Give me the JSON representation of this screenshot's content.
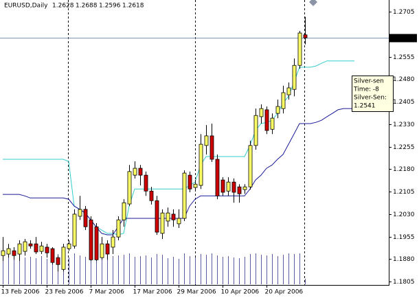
{
  "chart_data": {
    "type": "candlestick",
    "title": "EURUSD,Daily",
    "ohlc_header": [
      1.2628,
      1.2688,
      1.2596,
      1.2618
    ],
    "current_price": 1.2618,
    "up_color": "#ffff66",
    "down_color": "#cc0000",
    "ylim": [
      1.1794,
      1.2744
    ],
    "yticks": [
      1.2705,
      1.2555,
      {
        "value": 1.248,
        "label": "1.2480"
      },
      1.2405,
      {
        "value": 1.233,
        "label": "1.2330"
      },
      1.2255,
      {
        "value": 1.218,
        "label": "1.2180"
      },
      1.2105,
      {
        "value": 1.203,
        "label": "1.2030"
      },
      1.1955,
      {
        "value": 1.188,
        "label": "1.1880"
      },
      1.1805
    ],
    "categories": [
      "13 Feb 2006",
      null,
      null,
      null,
      null,
      null,
      null,
      null,
      "23 Feb 2006",
      null,
      null,
      null,
      null,
      null,
      null,
      null,
      "7 Mar 2006",
      null,
      null,
      null,
      null,
      null,
      null,
      null,
      "17 Mar 2006",
      null,
      null,
      null,
      null,
      null,
      null,
      null,
      "29 Mar 2006",
      null,
      null,
      null,
      null,
      null,
      null,
      null,
      "10 Apr 2006",
      null,
      null,
      null,
      null,
      null,
      null,
      null,
      "20 Apr 2006",
      null,
      null,
      null,
      null,
      null,
      null,
      null,
      null,
      null,
      null,
      null,
      null,
      null,
      null,
      null,
      null,
      null,
      null,
      null,
      null,
      null,
      null
    ],
    "open": [
      1.1892,
      1.1897,
      1.1908,
      1.1897,
      1.1906,
      1.1931,
      1.1931,
      1.1906,
      1.192,
      1.1915,
      1.1885,
      1.1846,
      1.1915,
      1.1924,
      1.2023,
      1.2046,
      1.2011,
      1.1988,
      1.1885,
      1.1931,
      1.192,
      1.1954,
      1.2011,
      1.2064,
      1.216,
      1.2183,
      1.216,
      1.2107,
      1.2075,
      1.1966,
      1.2007,
      1.203,
      1.1998,
      1.2016,
      1.216,
      1.2119,
      1.2126,
      1.2259,
      1.2291,
      1.2213,
      1.2144,
      1.2107,
      1.2137,
      1.2121,
      1.2112,
      1.2121,
      1.2259,
      1.2355,
      1.2378,
      1.2313,
      1.2366,
      1.2382,
      1.2428,
      1.2446,
      1.2526,
      1.2628,
      null,
      null,
      null,
      null,
      null,
      null,
      null,
      null,
      null,
      null,
      null,
      null,
      null,
      null,
      null
    ],
    "high": [
      1.1954,
      1.1931,
      1.192,
      1.1943,
      1.1947,
      1.1943,
      1.1954,
      1.1938,
      1.1931,
      1.192,
      1.1892,
      1.1931,
      1.1943,
      1.2046,
      1.2091,
      1.2057,
      1.2023,
      1.2,
      1.1954,
      1.1943,
      1.1977,
      1.2023,
      1.208,
      1.2194,
      1.2206,
      1.2194,
      1.2172,
      1.2121,
      1.2091,
      1.2046,
      1.2052,
      1.2046,
      1.2046,
      1.2176,
      1.2172,
      1.2144,
      1.2297,
      1.2327,
      1.2332,
      1.2229,
      1.2153,
      1.2153,
      1.2149,
      1.213,
      1.213,
      1.2275,
      1.2382,
      1.2396,
      1.2389,
      1.2366,
      1.2412,
      1.2458,
      1.2469,
      1.2549,
      1.2641,
      1.2688,
      null,
      null,
      null,
      null,
      null,
      null,
      null,
      null,
      null,
      null,
      null,
      null,
      null,
      null,
      null
    ],
    "low": [
      1.1874,
      1.1885,
      1.1878,
      1.1874,
      1.1892,
      1.1915,
      1.1897,
      1.1897,
      1.1885,
      1.1862,
      1.1839,
      1.1839,
      1.1908,
      1.1915,
      1.2011,
      1.1977,
      1.1874,
      1.1874,
      1.1878,
      1.1878,
      1.1897,
      1.1943,
      1.1988,
      1.2057,
      1.2149,
      1.2126,
      1.2091,
      1.2062,
      1.1961,
      1.1947,
      1.1988,
      1.1988,
      1.1984,
      1.2007,
      1.2103,
      1.2107,
      1.2114,
      1.2229,
      1.2204,
      1.208,
      1.2091,
      1.2091,
      1.2068,
      1.2068,
      1.2098,
      1.2112,
      1.2245,
      1.2332,
      1.2297,
      1.2297,
      1.235,
      1.2366,
      1.2412,
      1.2423,
      1.2515,
      1.2596,
      null,
      null,
      null,
      null,
      null,
      null,
      null,
      null,
      null,
      null,
      null,
      null,
      null,
      null,
      null
    ],
    "close": [
      1.1908,
      1.1915,
      1.1892,
      1.1931,
      1.1938,
      1.1924,
      1.1904,
      1.1924,
      1.1901,
      1.1869,
      1.1862,
      1.192,
      1.1931,
      1.203,
      1.2046,
      1.1988,
      1.1878,
      1.1878,
      1.1931,
      1.1897,
      1.1954,
      1.2011,
      1.2068,
      1.2172,
      1.2183,
      1.216,
      1.2107,
      1.2075,
      1.197,
      1.2034,
      1.2034,
      1.2011,
      1.2016,
      1.2167,
      1.2114,
      1.213,
      1.2263,
      1.2291,
      1.2213,
      1.2091,
      1.2103,
      1.2137,
      1.2103,
      1.2098,
      1.2121,
      1.2259,
      1.2359,
      1.2382,
      1.2309,
      1.235,
      1.2389,
      1.2435,
      1.2451,
      1.2526,
      1.2634,
      1.2618,
      null,
      null,
      null,
      null,
      null,
      null,
      null,
      null,
      null,
      null,
      null,
      null,
      null,
      null,
      null
    ],
    "volume": {
      "color": "#5a5aa0",
      "values": [
        38,
        40,
        36,
        42,
        39,
        40,
        38,
        41,
        37,
        42,
        44,
        43,
        39,
        45,
        42,
        40,
        43,
        44,
        38,
        40,
        41,
        42,
        43,
        45,
        40,
        41,
        42,
        39,
        44,
        43,
        38,
        40,
        37,
        45,
        41,
        39,
        44,
        43,
        45,
        42,
        40,
        41,
        39,
        38,
        40,
        44,
        45,
        43,
        42,
        44,
        41,
        43,
        45,
        44,
        45,
        8,
        null,
        null,
        null,
        null,
        null,
        null,
        null,
        null,
        null,
        null,
        null,
        null,
        null,
        null,
        null
      ]
    },
    "lines": [
      {
        "color": "#33cccc",
        "values": [
          1.2213,
          1.2213,
          1.2213,
          1.2213,
          1.2213,
          1.2213,
          1.2213,
          1.2213,
          1.2213,
          1.2213,
          1.2213,
          1.2213,
          1.2206,
          1.2057,
          1.2046,
          1.2034,
          1.2011,
          1.1988,
          1.1977,
          1.1966,
          1.1966,
          1.1961,
          1.1966,
          1.2057,
          1.2114,
          1.2114,
          1.2114,
          1.2114,
          1.2114,
          1.2114,
          1.2114,
          1.2114,
          1.2114,
          1.2114,
          1.2126,
          1.2137,
          1.2194,
          1.2222,
          1.2222,
          1.2222,
          1.2222,
          1.2222,
          1.2222,
          1.2222,
          1.2222,
          1.2259,
          1.2309,
          1.2332,
          1.2336,
          1.2343,
          1.2366,
          1.24,
          1.2423,
          1.2469,
          1.252,
          1.252,
          1.252,
          1.2524,
          1.2533,
          1.2541,
          1.2541,
          1.2541,
          1.2541,
          1.2541,
          1.2541,
          null,
          null,
          null,
          null,
          null,
          null
        ]
      },
      {
        "color": "#1a1a99",
        "values": [
          1.2096,
          1.2096,
          1.2096,
          1.2096,
          1.2091,
          1.2084,
          1.2084,
          1.2084,
          1.2084,
          1.2084,
          1.2084,
          1.2084,
          1.208,
          1.2057,
          1.2046,
          1.2034,
          1.2011,
          1.1988,
          1.1966,
          1.1961,
          1.1961,
          1.1988,
          1.2016,
          1.2016,
          1.2016,
          1.2016,
          1.2016,
          1.2016,
          1.2016,
          1.2016,
          1.2016,
          1.2016,
          1.2016,
          1.2016,
          1.2057,
          1.208,
          1.2091,
          1.2091,
          1.2091,
          1.2091,
          1.2091,
          1.2091,
          1.2091,
          1.2091,
          1.2091,
          1.2114,
          1.2144,
          1.216,
          1.2183,
          1.2194,
          1.2213,
          1.2229,
          1.2263,
          1.2297,
          1.2332,
          1.2332,
          1.2332,
          1.2336,
          1.2343,
          1.2355,
          1.2366,
          1.2378,
          1.2382,
          1.2382,
          1.2382,
          1.2382,
          1.2382,
          1.2382,
          1.2382,
          1.2382,
          1.2382
        ]
      }
    ],
    "tooltip": [
      "Silver-sen",
      "Time: -8",
      "Silver-Sen:",
      "1.2541"
    ]
  }
}
